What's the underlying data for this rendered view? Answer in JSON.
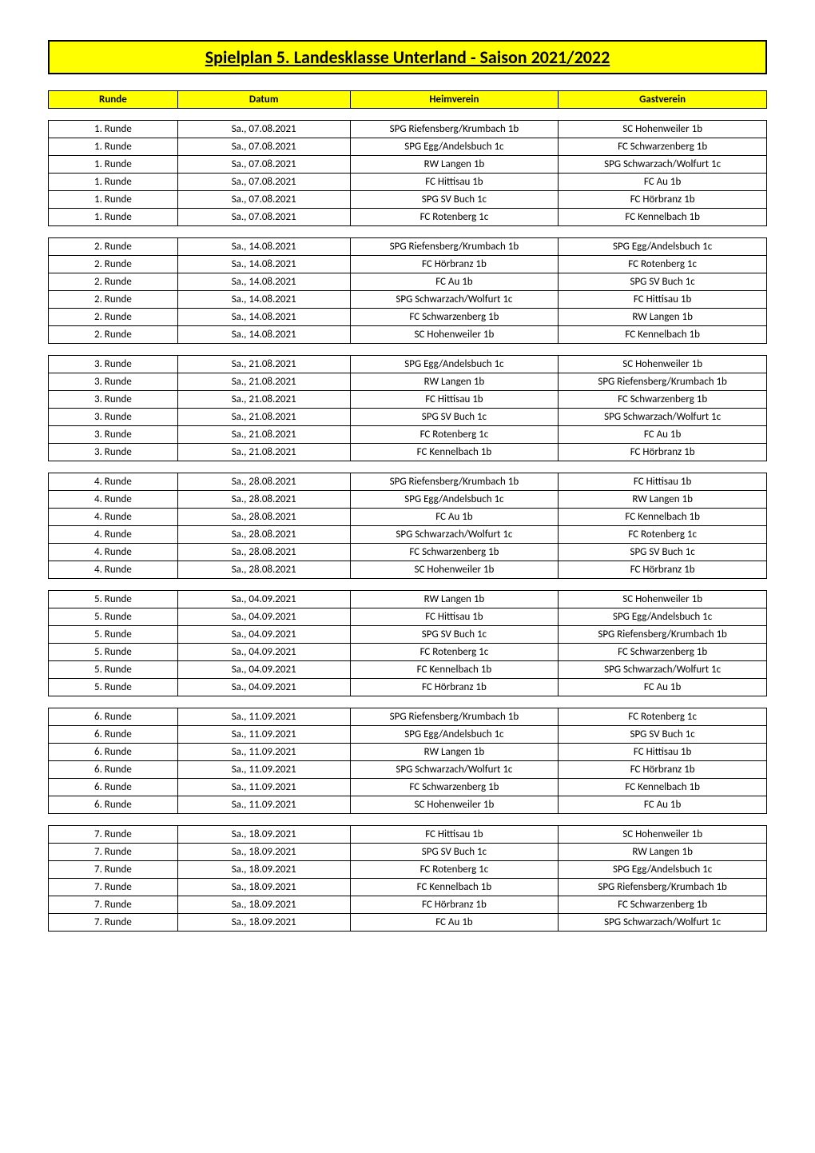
{
  "title": "Spielplan 5. Landesklasse Unterland - Saison 2021/2022",
  "headers": {
    "runde": "Runde",
    "datum": "Datum",
    "heimverein": "Heimverein",
    "gastverein": "Gastverein"
  },
  "rounds": [
    {
      "rows": [
        {
          "runde": "1. Runde",
          "datum": "Sa., 07.08.2021",
          "heim": "SPG Riefensberg/Krumbach 1b",
          "gast": "SC Hohenweiler 1b"
        },
        {
          "runde": "1. Runde",
          "datum": "Sa., 07.08.2021",
          "heim": "SPG Egg/Andelsbuch 1c",
          "gast": "FC Schwarzenberg 1b"
        },
        {
          "runde": "1. Runde",
          "datum": "Sa., 07.08.2021",
          "heim": "RW Langen 1b",
          "gast": "SPG Schwarzach/Wolfurt 1c"
        },
        {
          "runde": "1. Runde",
          "datum": "Sa., 07.08.2021",
          "heim": "FC Hittisau 1b",
          "gast": "FC Au 1b"
        },
        {
          "runde": "1. Runde",
          "datum": "Sa., 07.08.2021",
          "heim": "SPG SV Buch 1c",
          "gast": "FC Hörbranz 1b"
        },
        {
          "runde": "1. Runde",
          "datum": "Sa., 07.08.2021",
          "heim": "FC Rotenberg 1c",
          "gast": "FC Kennelbach 1b"
        }
      ]
    },
    {
      "rows": [
        {
          "runde": "2. Runde",
          "datum": "Sa., 14.08.2021",
          "heim": "SPG Riefensberg/Krumbach 1b",
          "gast": "SPG Egg/Andelsbuch 1c"
        },
        {
          "runde": "2. Runde",
          "datum": "Sa., 14.08.2021",
          "heim": "FC Hörbranz 1b",
          "gast": "FC Rotenberg 1c"
        },
        {
          "runde": "2. Runde",
          "datum": "Sa., 14.08.2021",
          "heim": "FC Au 1b",
          "gast": "SPG SV Buch 1c"
        },
        {
          "runde": "2. Runde",
          "datum": "Sa., 14.08.2021",
          "heim": "SPG Schwarzach/Wolfurt 1c",
          "gast": "FC Hittisau 1b"
        },
        {
          "runde": "2. Runde",
          "datum": "Sa., 14.08.2021",
          "heim": "FC Schwarzenberg 1b",
          "gast": "RW Langen 1b"
        },
        {
          "runde": "2. Runde",
          "datum": "Sa., 14.08.2021",
          "heim": "SC Hohenweiler 1b",
          "gast": "FC Kennelbach 1b"
        }
      ]
    },
    {
      "rows": [
        {
          "runde": "3. Runde",
          "datum": "Sa., 21.08.2021",
          "heim": "SPG Egg/Andelsbuch 1c",
          "gast": "SC Hohenweiler 1b"
        },
        {
          "runde": "3. Runde",
          "datum": "Sa., 21.08.2021",
          "heim": "RW Langen 1b",
          "gast": "SPG Riefensberg/Krumbach 1b"
        },
        {
          "runde": "3. Runde",
          "datum": "Sa., 21.08.2021",
          "heim": "FC Hittisau 1b",
          "gast": "FC Schwarzenberg 1b"
        },
        {
          "runde": "3. Runde",
          "datum": "Sa., 21.08.2021",
          "heim": "SPG SV Buch 1c",
          "gast": "SPG Schwarzach/Wolfurt 1c"
        },
        {
          "runde": "3. Runde",
          "datum": "Sa., 21.08.2021",
          "heim": "FC Rotenberg 1c",
          "gast": "FC Au 1b"
        },
        {
          "runde": "3. Runde",
          "datum": "Sa., 21.08.2021",
          "heim": "FC Kennelbach 1b",
          "gast": "FC Hörbranz 1b"
        }
      ]
    },
    {
      "rows": [
        {
          "runde": "4. Runde",
          "datum": "Sa., 28.08.2021",
          "heim": "SPG Riefensberg/Krumbach 1b",
          "gast": "FC Hittisau 1b"
        },
        {
          "runde": "4. Runde",
          "datum": "Sa., 28.08.2021",
          "heim": "SPG Egg/Andelsbuch 1c",
          "gast": "RW Langen 1b"
        },
        {
          "runde": "4. Runde",
          "datum": "Sa., 28.08.2021",
          "heim": "FC Au 1b",
          "gast": "FC Kennelbach 1b"
        },
        {
          "runde": "4. Runde",
          "datum": "Sa., 28.08.2021",
          "heim": "SPG Schwarzach/Wolfurt 1c",
          "gast": "FC Rotenberg 1c"
        },
        {
          "runde": "4. Runde",
          "datum": "Sa., 28.08.2021",
          "heim": "FC Schwarzenberg 1b",
          "gast": "SPG SV Buch 1c"
        },
        {
          "runde": "4. Runde",
          "datum": "Sa., 28.08.2021",
          "heim": "SC Hohenweiler 1b",
          "gast": "FC Hörbranz 1b"
        }
      ]
    },
    {
      "rows": [
        {
          "runde": "5. Runde",
          "datum": "Sa., 04.09.2021",
          "heim": "RW Langen 1b",
          "gast": "SC Hohenweiler 1b"
        },
        {
          "runde": "5. Runde",
          "datum": "Sa., 04.09.2021",
          "heim": "FC Hittisau 1b",
          "gast": "SPG Egg/Andelsbuch 1c"
        },
        {
          "runde": "5. Runde",
          "datum": "Sa., 04.09.2021",
          "heim": "SPG SV Buch 1c",
          "gast": "SPG Riefensberg/Krumbach 1b"
        },
        {
          "runde": "5. Runde",
          "datum": "Sa., 04.09.2021",
          "heim": "FC Rotenberg 1c",
          "gast": "FC Schwarzenberg 1b"
        },
        {
          "runde": "5. Runde",
          "datum": "Sa., 04.09.2021",
          "heim": "FC Kennelbach 1b",
          "gast": "SPG Schwarzach/Wolfurt 1c"
        },
        {
          "runde": "5. Runde",
          "datum": "Sa., 04.09.2021",
          "heim": "FC Hörbranz 1b",
          "gast": "FC Au 1b"
        }
      ]
    },
    {
      "rows": [
        {
          "runde": "6. Runde",
          "datum": "Sa., 11.09.2021",
          "heim": "SPG Riefensberg/Krumbach 1b",
          "gast": "FC Rotenberg 1c"
        },
        {
          "runde": "6. Runde",
          "datum": "Sa., 11.09.2021",
          "heim": "SPG Egg/Andelsbuch 1c",
          "gast": "SPG SV Buch 1c"
        },
        {
          "runde": "6. Runde",
          "datum": "Sa., 11.09.2021",
          "heim": "RW Langen 1b",
          "gast": "FC Hittisau 1b"
        },
        {
          "runde": "6. Runde",
          "datum": "Sa., 11.09.2021",
          "heim": "SPG Schwarzach/Wolfurt 1c",
          "gast": "FC Hörbranz 1b"
        },
        {
          "runde": "6. Runde",
          "datum": "Sa., 11.09.2021",
          "heim": "FC Schwarzenberg 1b",
          "gast": "FC Kennelbach 1b"
        },
        {
          "runde": "6. Runde",
          "datum": "Sa., 11.09.2021",
          "heim": "SC Hohenweiler 1b",
          "gast": "FC Au 1b"
        }
      ]
    },
    {
      "rows": [
        {
          "runde": "7. Runde",
          "datum": "Sa., 18.09.2021",
          "heim": "FC Hittisau 1b",
          "gast": "SC Hohenweiler 1b"
        },
        {
          "runde": "7. Runde",
          "datum": "Sa., 18.09.2021",
          "heim": "SPG SV Buch 1c",
          "gast": "RW Langen 1b"
        },
        {
          "runde": "7. Runde",
          "datum": "Sa., 18.09.2021",
          "heim": "FC Rotenberg 1c",
          "gast": "SPG Egg/Andelsbuch 1c"
        },
        {
          "runde": "7. Runde",
          "datum": "Sa., 18.09.2021",
          "heim": "FC Kennelbach 1b",
          "gast": "SPG Riefensberg/Krumbach 1b"
        },
        {
          "runde": "7. Runde",
          "datum": "Sa., 18.09.2021",
          "heim": "FC Hörbranz 1b",
          "gast": "FC Schwarzenberg 1b"
        },
        {
          "runde": "7. Runde",
          "datum": "Sa., 18.09.2021",
          "heim": "FC Au 1b",
          "gast": "SPG Schwarzach/Wolfurt 1c"
        }
      ]
    }
  ]
}
